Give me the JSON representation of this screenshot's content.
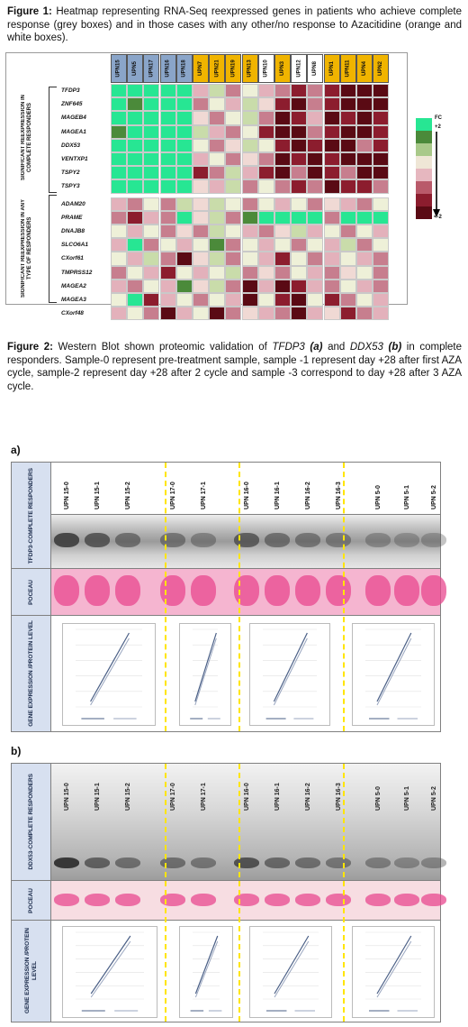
{
  "figure1": {
    "label": "Figure 1:",
    "caption": "Heatmap representing RNA-Seq reexpressed genes in patients who achieve complete response (grey boxes) and in those cases with any other/no response to Azacitidine (orange and white boxes)."
  },
  "heatmap": {
    "samples": [
      {
        "label": "UPN15",
        "group": "grey"
      },
      {
        "label": "UPN5",
        "group": "grey"
      },
      {
        "label": "UPN17",
        "group": "grey"
      },
      {
        "label": "UPN16",
        "group": "grey"
      },
      {
        "label": "UPN18",
        "group": "grey"
      },
      {
        "label": "UPN7",
        "group": "orange"
      },
      {
        "label": "UPN21",
        "group": "orange"
      },
      {
        "label": "UPN19",
        "group": "orange"
      },
      {
        "label": "UPN13",
        "group": "orange"
      },
      {
        "label": "UPN10",
        "group": "white"
      },
      {
        "label": "UPN3",
        "group": "orange"
      },
      {
        "label": "UPN12",
        "group": "white"
      },
      {
        "label": "UPN8",
        "group": "white"
      },
      {
        "label": "UPN1",
        "group": "orange"
      },
      {
        "label": "UPN11",
        "group": "orange"
      },
      {
        "label": "UPN4",
        "group": "orange"
      },
      {
        "label": "UPN2",
        "group": "orange"
      }
    ],
    "groups": [
      {
        "label": "SIGNIFICANT REEXPRESSION IN COMPLETE RESPONDERS",
        "genes": [
          "TFDP3",
          "ZNF645",
          "MAGEB4",
          "MAGEA1",
          "DDX53",
          "VENTXP1",
          "TSPY2",
          "TSPY3"
        ]
      },
      {
        "label": "SIGNIFICANT REEXPRESSION IN ANY TYPE OF RESPONDERS",
        "genes": [
          "ADAM20",
          "PRAME",
          "DNAJB8",
          "SLCO6A1",
          "CXorf61",
          "TMPRSS12",
          "MAGEA2",
          "MAGEA3",
          "CXorf48"
        ]
      }
    ],
    "values": [
      [
        3,
        3,
        3,
        3,
        3,
        -0.5,
        0.5,
        -1,
        0.2,
        -0.5,
        -1,
        -2,
        -1,
        -2,
        -3,
        -3,
        -3
      ],
      [
        3,
        2,
        3,
        3,
        3,
        -1,
        0.3,
        -0.5,
        0.5,
        -0.3,
        -2,
        -3,
        -1,
        -2,
        -3,
        -3,
        -3
      ],
      [
        3,
        3,
        3,
        3,
        3,
        -0.3,
        -1,
        0.3,
        0.5,
        -1,
        -3,
        -2,
        -0.5,
        -3,
        -2,
        -3,
        -2
      ],
      [
        2,
        3,
        3,
        3,
        3,
        0.5,
        -0.5,
        -1,
        0.3,
        -2,
        -3,
        -3,
        -1,
        -2,
        -3,
        -3,
        -2
      ],
      [
        3,
        3,
        3,
        3,
        3,
        0.3,
        -1,
        -0.3,
        0.5,
        0.2,
        -2,
        -3,
        -2,
        -3,
        -3,
        -1,
        -2
      ],
      [
        3,
        3,
        3,
        3,
        3,
        -0.5,
        0.3,
        -1,
        -0.3,
        -1,
        -3,
        -2,
        -3,
        -2,
        -3,
        -3,
        -3
      ],
      [
        3,
        3,
        3,
        3,
        3,
        -2,
        -1,
        0.5,
        -0.5,
        -2,
        -3,
        -1,
        -3,
        -2,
        -1,
        -3,
        -3
      ],
      [
        3,
        3,
        3,
        3,
        3,
        -0.3,
        -0.5,
        0.5,
        -1,
        0.3,
        -1,
        -2,
        -1,
        -3,
        -2,
        -2,
        -1
      ],
      [
        -0.5,
        -1,
        0.3,
        -1,
        0.5,
        -0.3,
        0.5,
        0.3,
        -1,
        0.3,
        -0.5,
        0.3,
        -1,
        -0.3,
        -0.5,
        -1,
        0.3
      ],
      [
        -1,
        -2,
        -0.5,
        -1,
        3,
        -0.3,
        0.5,
        -1,
        1.5,
        3,
        3,
        3,
        3,
        -1,
        3,
        3,
        3
      ],
      [
        0.3,
        -0.5,
        0.3,
        -1,
        -0.3,
        -1,
        0.5,
        0.3,
        -0.5,
        -1,
        -0.3,
        0.5,
        -0.5,
        0.3,
        -1,
        0.3,
        -0.5
      ],
      [
        -0.5,
        3,
        -1,
        0.3,
        -0.5,
        0.3,
        1.5,
        -1,
        0.3,
        -0.5,
        0.3,
        -1,
        0.3,
        -0.5,
        0.5,
        -1,
        0.3
      ],
      [
        0.3,
        -0.5,
        0.5,
        -1,
        -3,
        -0.3,
        0.5,
        -1,
        0.3,
        -0.5,
        -2,
        0.3,
        -1,
        -0.5,
        0.3,
        -0.5,
        -1
      ],
      [
        -1,
        0.3,
        -0.5,
        -2,
        0.3,
        -0.5,
        0.3,
        0.5,
        -1,
        -0.3,
        -1,
        0.3,
        -0.5,
        -1,
        -0.3,
        0.3,
        -1
      ],
      [
        -0.5,
        -1,
        0.3,
        -0.5,
        1.5,
        -0.3,
        0.5,
        -1,
        -3,
        -0.5,
        -3,
        -2,
        -0.5,
        -1,
        0.3,
        -0.5,
        -1
      ],
      [
        0.3,
        3,
        -2,
        -0.5,
        0.3,
        -1,
        0.3,
        -0.5,
        -3,
        0.3,
        -2,
        -3,
        0.3,
        -2,
        -1,
        0.3,
        -0.5
      ],
      [
        -0.5,
        0.3,
        -1,
        -3,
        -0.5,
        0.3,
        -3,
        -1,
        -0.3,
        -0.5,
        -1,
        -3,
        -0.5,
        -0.3,
        -2,
        -1,
        -0.5
      ]
    ],
    "scale": {
      "title": "FC",
      "max_label": "+2",
      "min_label": "<-2"
    },
    "colors": {
      "grey_header": "#8aa5c9",
      "orange_header": "#f0b400",
      "white_header": "#ffffff",
      "high": "#27e693",
      "low": "#5a0a14",
      "neutral": "#e8d8c0"
    }
  },
  "figure2": {
    "label": "Figure 2:",
    "caption_parts": [
      {
        "text": " Western Blot shown proteomic validation of ",
        "style": "normal"
      },
      {
        "text": "TFDP3",
        "style": "italic"
      },
      {
        "text": " (a)",
        "style": "bolditalic"
      },
      {
        "text": " and ",
        "style": "normal"
      },
      {
        "text": "DDX53",
        "style": "italic"
      },
      {
        "text": " (b)",
        "style": "bolditalic"
      },
      {
        "text": " in complete responders. Sample-0 represent pre-treatment sample, sample -1 represent day +28 after first AZA cycle, sample-2 represent day +28 after 2 cycle and sample -3 correspond to day +28 after 3 AZA cycle.",
        "style": "normal"
      }
    ]
  },
  "panel_a": {
    "letter": "a)",
    "row_labels": [
      "TFDP3-COMPLETE RESPONDERS",
      "POCEAU",
      "GENE EXPRESSION /PROTEIN LEVEL"
    ],
    "lanes": [
      "UPN 15-0",
      "UPN 15-1",
      "UPN 15-2",
      "UPN 17-0",
      "UPN 17-1",
      "UPN 16-0",
      "UPN 16-1",
      "UPN 16-2",
      "UPN 16-3",
      "UPN 5-0",
      "UPN 5-1",
      "UPN 5-2"
    ]
  },
  "panel_b": {
    "letter": "b)",
    "row_labels": [
      "DDX53-COMPLETE RESPONDERS",
      "POCEAU",
      "GENE EXPRESSION /PROTEIN LEVEL"
    ],
    "lanes": [
      "UPN 15-0",
      "UPN 15-1",
      "UPN 15-2",
      "UPN 17-0",
      "UPN 17-1",
      "UPN 16-0",
      "UPN 16-1",
      "UPN 16-2",
      "UPN 16-3",
      "UPN 5-0",
      "UPN 5-1",
      "UPN 5-2"
    ]
  },
  "colors": {
    "divider": "#ffe500",
    "side_panel": "#d7e0f0",
    "ponceau": "#f2a0c4",
    "ponceau_band": "#e8488f"
  }
}
